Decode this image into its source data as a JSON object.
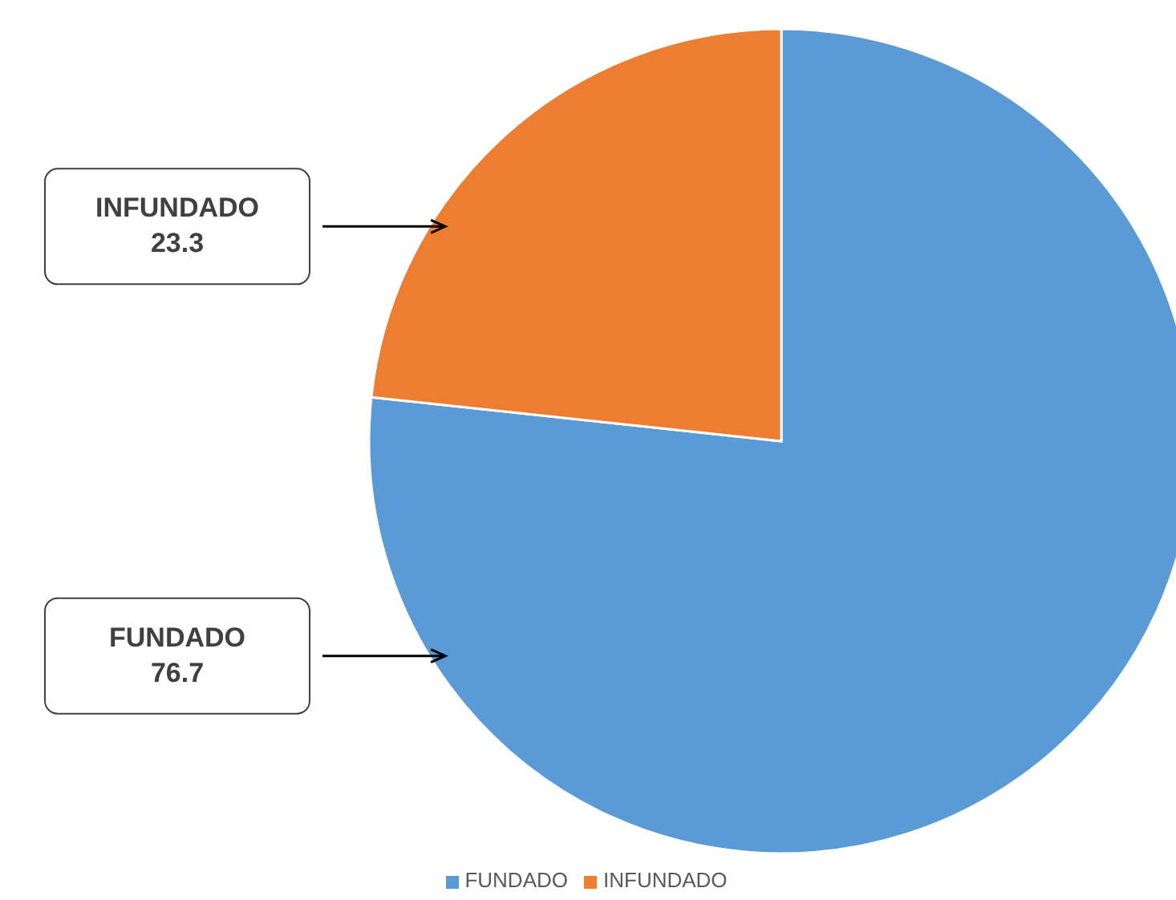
{
  "chart_data": {
    "type": "pie",
    "categories": [
      "FUNDADO",
      "INFUNDADO"
    ],
    "values": [
      76.7,
      23.3
    ],
    "colors": [
      "#5b9bd5",
      "#ed7d31"
    ],
    "data_labels": true,
    "legend": "bottom"
  }
}
